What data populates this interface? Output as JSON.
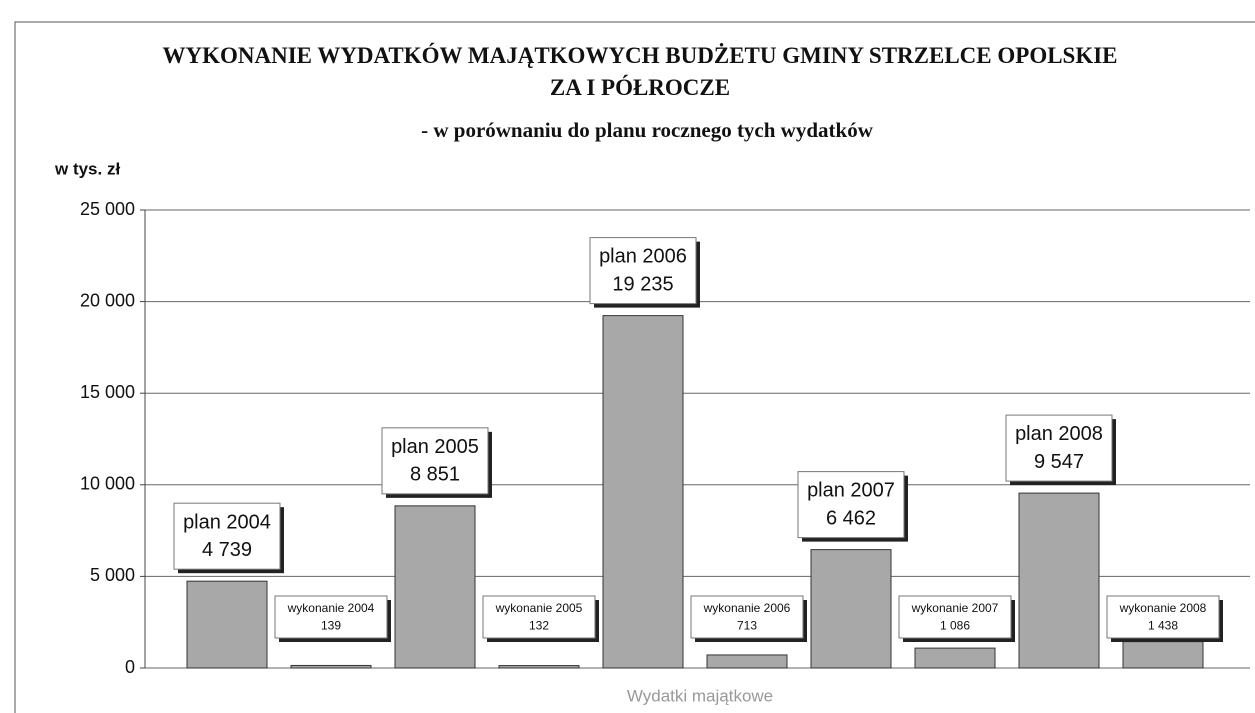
{
  "chart_data": {
    "type": "bar",
    "title": "WYKONANIE WYDATKÓW MAJĄTKOWYCH BUDŻETU GMINY STRZELCE OPOLSKIE ZA I PÓŁROCZE",
    "subtitle": "- w porównaniu do planu rocznego tych wydatków",
    "y_label": "w tys. zł",
    "x_label": "Wydatki majątkowe",
    "categories": [
      "plan 2004",
      "wykonanie 2004",
      "plan 2005",
      "wykonanie 2005",
      "plan 2006",
      "wykonanie 2006",
      "plan 2007",
      "wykonanie 2007",
      "plan 2008",
      "wykonanie 2008"
    ],
    "values": [
      4739,
      139,
      8851,
      132,
      19235,
      713,
      6462,
      1086,
      9547,
      1438
    ],
    "value_labels": [
      "4 739",
      "139",
      "8 851",
      "132",
      "19 235",
      "713",
      "6 462",
      "1 086",
      "9 547",
      "1 438"
    ],
    "color": "#a8a8a8",
    "ylim": [
      0,
      25000
    ],
    "yticks": [
      0,
      {
        "value": 5000,
        "label": "5 000"
      },
      {
        "value": 10000,
        "label": "10 000"
      },
      {
        "value": 15000,
        "label": "15 000"
      },
      {
        "value": 20000,
        "label": "20 000"
      },
      {
        "value": 25000,
        "label": "25 000"
      }
    ],
    "grid": true
  }
}
